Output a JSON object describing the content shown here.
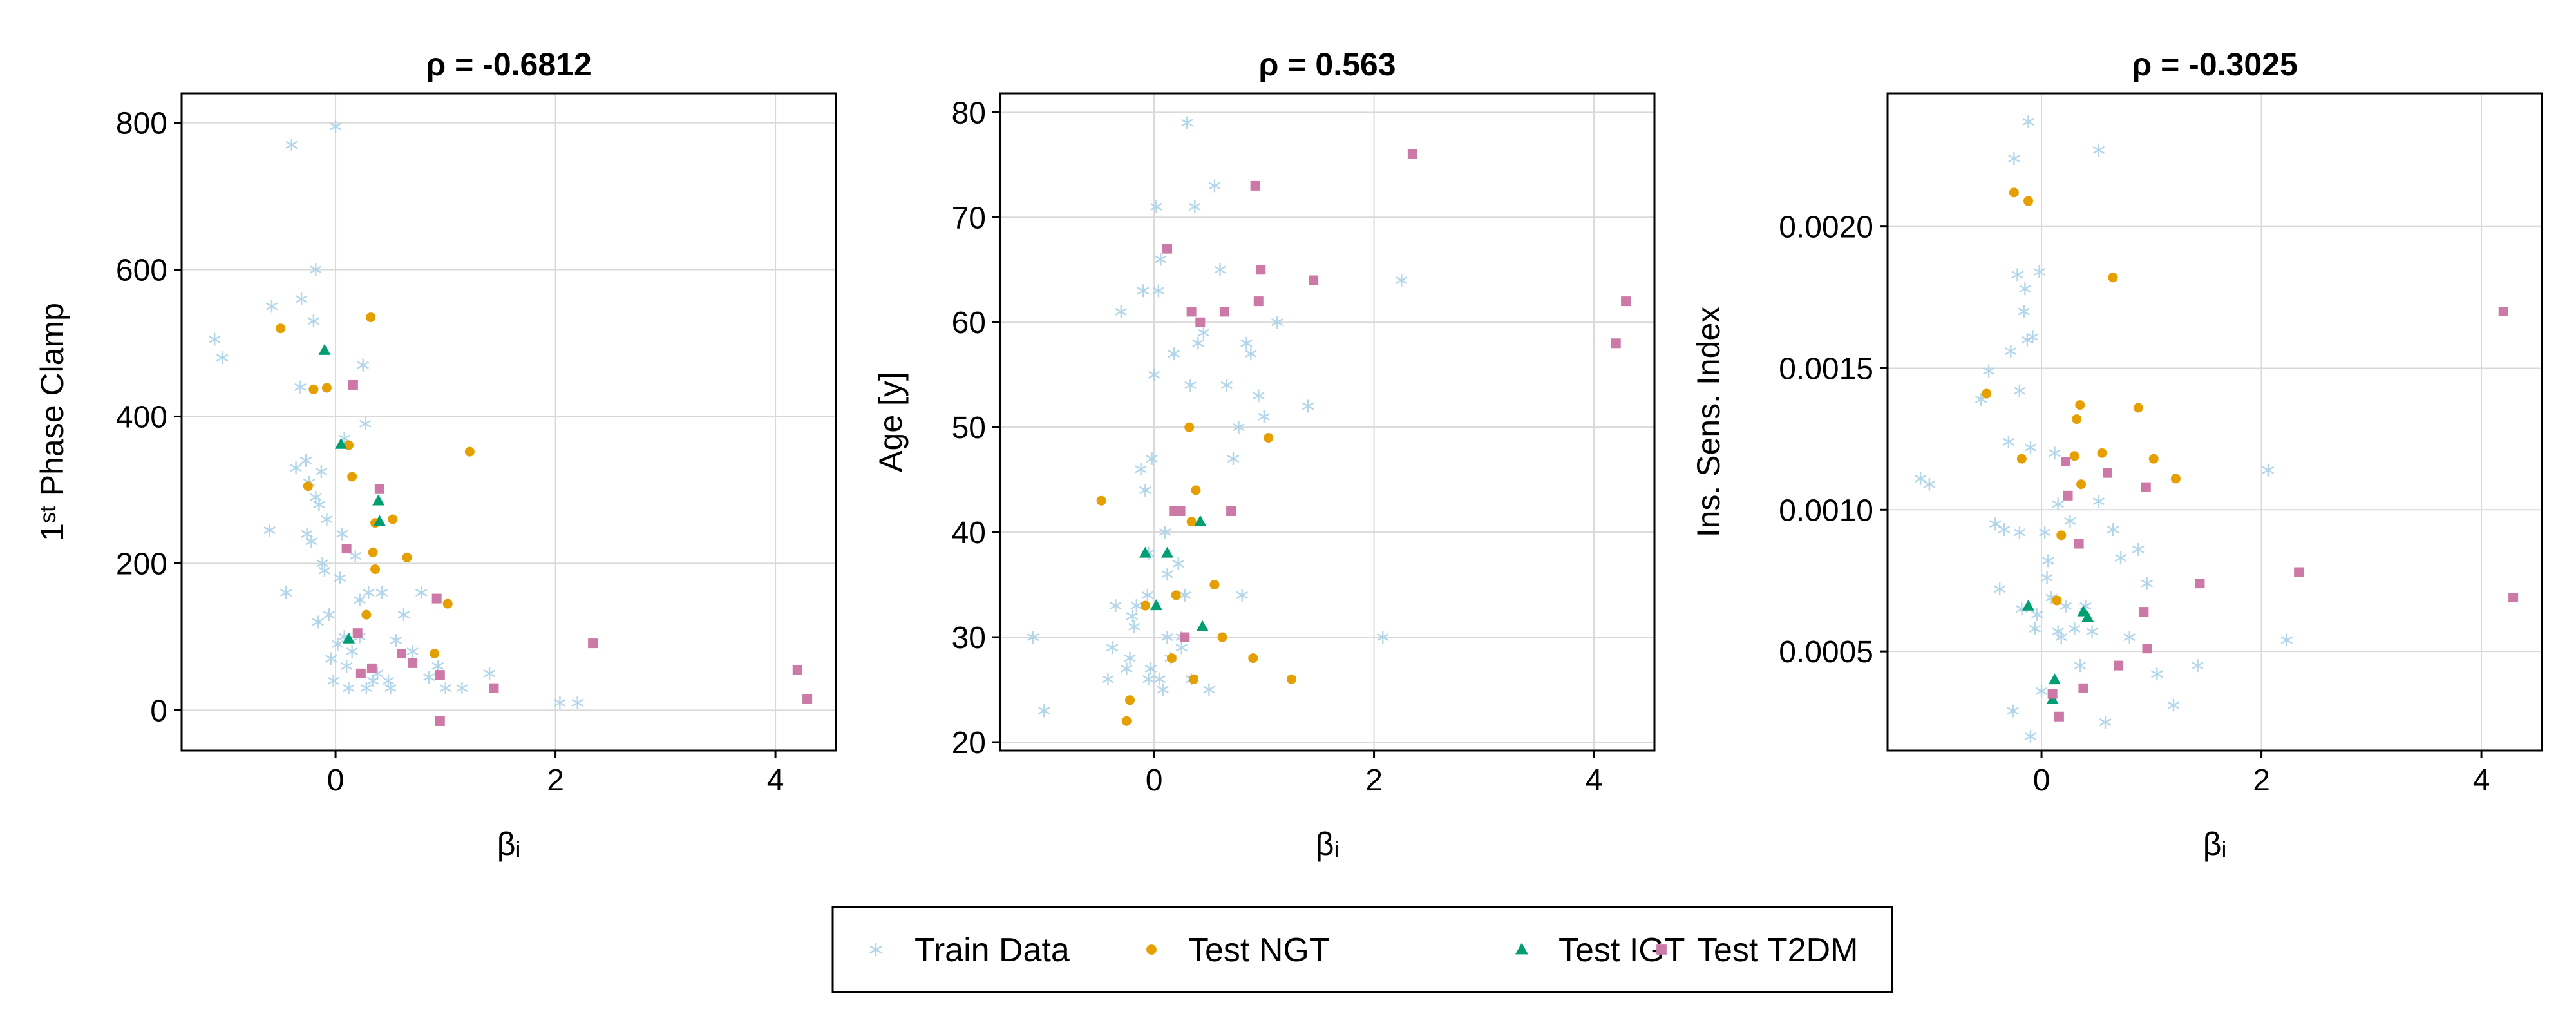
{
  "chart_data": [
    {
      "type": "scatter",
      "title": "ρ = -0.6812",
      "xlabel": "βᵢ",
      "ylabel": "1ˢᵗ Phase Clamp",
      "xlim": [
        -1.4,
        4.55
      ],
      "ylim": [
        -55,
        840
      ],
      "xticks": [
        0,
        2,
        4
      ],
      "xtick_labels": [
        "0",
        "2",
        "4"
      ],
      "yticks": [
        0,
        200,
        400,
        600,
        800
      ],
      "ytick_labels": [
        "0",
        "200",
        "400",
        "600",
        "800"
      ],
      "grid": true,
      "series": [
        {
          "name": "Train Data",
          "x": [
            -1.1,
            -1.03,
            -0.58,
            -0.4,
            -0.36,
            -0.31,
            -0.27,
            -0.22,
            -0.2,
            -0.18,
            -0.16,
            -0.15,
            -0.13,
            -0.12,
            -0.1,
            -0.08,
            -0.06,
            -0.04,
            0.0,
            0.02,
            0.04,
            0.06,
            0.08,
            0.1,
            0.12,
            0.15,
            0.18,
            0.22,
            0.25,
            0.28,
            0.3,
            0.34,
            0.38,
            0.42,
            0.48,
            0.55,
            0.62,
            0.7,
            0.78,
            0.85,
            0.93,
            1.0,
            1.15,
            1.4,
            -0.6,
            -0.45,
            -0.26,
            -0.32,
            -0.02,
            0.27,
            2.04,
            2.2,
            -0.24,
            -0.18,
            0.08,
            0.5,
            0.22
          ],
          "y": [
            505,
            480,
            550,
            770,
            330,
            560,
            340,
            230,
            530,
            600,
            120,
            280,
            325,
            200,
            190,
            260,
            130,
            70,
            795,
            90,
            180,
            240,
            100,
            60,
            30,
            80,
            210,
            150,
            470,
            30,
            160,
            40,
            50,
            160,
            40,
            95,
            130,
            80,
            160,
            45,
            60,
            30,
            30,
            50,
            245,
            160,
            240,
            440,
            40,
            390,
            10,
            10,
            310,
            290,
            370,
            30,
            100
          ]
        },
        {
          "name": "Test NGT",
          "x": [
            -0.5,
            -0.25,
            -0.2,
            -0.08,
            0.12,
            0.15,
            0.32,
            0.34,
            0.36,
            0.36,
            0.52,
            0.65,
            0.9,
            1.02,
            1.22,
            0.28
          ],
          "y": [
            520,
            305,
            437,
            439,
            361,
            318,
            535,
            215,
            192,
            255,
            260,
            208,
            77,
            145,
            352,
            130
          ]
        },
        {
          "name": "Test IGT",
          "x": [
            -0.1,
            0.05,
            0.39,
            0.4,
            0.12
          ],
          "y": [
            490,
            362,
            285,
            257,
            97
          ]
        },
        {
          "name": "Test T2DM",
          "x": [
            0.1,
            0.16,
            0.2,
            0.23,
            0.33,
            0.4,
            0.6,
            0.7,
            0.92,
            0.95,
            0.95,
            1.44,
            2.34,
            4.2,
            4.29
          ],
          "y": [
            220,
            443,
            105,
            50,
            57,
            301,
            77,
            64,
            152,
            48,
            -15,
            30,
            91,
            55,
            15
          ]
        }
      ]
    },
    {
      "type": "scatter",
      "title": "ρ = 0.563",
      "xlabel": "βᵢ",
      "ylabel": "Age [y]",
      "xlim": [
        -1.4,
        4.55
      ],
      "ylim": [
        19.2,
        81.8
      ],
      "xticks": [
        0,
        2,
        4
      ],
      "xtick_labels": [
        "0",
        "2",
        "4"
      ],
      "yticks": [
        20,
        30,
        40,
        50,
        60,
        70,
        80
      ],
      "ytick_labels": [
        "20",
        "30",
        "40",
        "50",
        "60",
        "70",
        "80"
      ],
      "grid": true,
      "series": [
        {
          "name": "Train Data",
          "x": [
            -1.1,
            -1.0,
            -0.42,
            -0.38,
            -0.3,
            -0.25,
            -0.2,
            -0.18,
            -0.16,
            -0.12,
            -0.1,
            -0.08,
            -0.06,
            -0.05,
            -0.03,
            0.0,
            0.02,
            0.04,
            0.06,
            0.08,
            0.1,
            0.12,
            0.15,
            0.18,
            0.22,
            0.25,
            0.28,
            0.3,
            0.33,
            0.37,
            0.4,
            0.45,
            0.5,
            0.55,
            0.6,
            0.66,
            0.72,
            0.77,
            0.84,
            0.88,
            0.95,
            1.0,
            1.12,
            1.4,
            2.08,
            2.25,
            -0.35,
            -0.22,
            -0.02,
            0.05,
            0.25,
            -0.05,
            0.12,
            0.34,
            0.8
          ],
          "y": [
            30,
            23,
            26,
            29,
            61,
            27,
            32,
            31,
            33,
            46,
            63,
            44,
            34,
            26,
            27,
            55,
            71,
            63,
            66,
            25,
            40,
            36,
            28,
            57,
            37,
            30,
            34,
            79,
            54,
            71,
            58,
            59,
            25,
            73,
            65,
            54,
            47,
            50,
            58,
            57,
            53,
            51,
            60,
            52,
            30,
            64,
            33,
            28,
            47,
            26,
            29,
            38,
            30,
            26,
            34
          ]
        },
        {
          "name": "Test NGT",
          "x": [
            -0.48,
            -0.22,
            -0.08,
            0.16,
            0.2,
            0.32,
            0.34,
            0.36,
            0.38,
            0.55,
            0.62,
            0.9,
            1.04,
            1.25,
            -0.25
          ],
          "y": [
            43,
            24,
            33,
            28,
            34,
            50,
            41,
            26,
            44,
            35,
            30,
            28,
            49,
            26,
            22
          ]
        },
        {
          "name": "Test IGT",
          "x": [
            -0.08,
            0.02,
            0.12,
            0.42,
            0.44
          ],
          "y": [
            38,
            33,
            38,
            41,
            31
          ]
        },
        {
          "name": "Test T2DM",
          "x": [
            0.12,
            0.18,
            0.24,
            0.28,
            0.34,
            0.42,
            0.64,
            0.7,
            0.92,
            0.95,
            0.97,
            1.45,
            2.35,
            4.2,
            4.29
          ],
          "y": [
            67,
            42,
            42,
            30,
            61,
            60,
            61,
            42,
            73,
            62,
            65,
            64,
            76,
            58,
            62
          ]
        }
      ]
    },
    {
      "type": "scatter",
      "title": "ρ = -0.3025",
      "xlabel": "βᵢ",
      "ylabel": "Ins. Sens. Index",
      "xlim": [
        -1.4,
        4.55
      ],
      "ylim": [
        0.00015,
        0.00247
      ],
      "xticks": [
        0,
        2,
        4
      ],
      "xtick_labels": [
        "0",
        "2",
        "4"
      ],
      "yticks": [
        0.0005,
        0.001,
        0.0015,
        0.002
      ],
      "ytick_labels": [
        "0.0005",
        "0.0010",
        "0.0015",
        "0.0020"
      ],
      "grid": true,
      "series": [
        {
          "name": "Train Data",
          "x": [
            -1.1,
            -1.02,
            -0.55,
            -0.48,
            -0.42,
            -0.38,
            -0.34,
            -0.3,
            -0.28,
            -0.25,
            -0.22,
            -0.2,
            -0.18,
            -0.16,
            -0.15,
            -0.13,
            -0.12,
            -0.1,
            -0.08,
            -0.06,
            -0.04,
            -0.02,
            0.0,
            0.03,
            0.06,
            0.09,
            0.12,
            0.15,
            0.18,
            0.22,
            0.26,
            0.3,
            0.35,
            0.4,
            0.46,
            0.52,
            0.58,
            0.65,
            0.72,
            0.8,
            0.88,
            0.96,
            1.05,
            1.2,
            1.42,
            2.06,
            2.23,
            -0.26,
            -0.1,
            0.05,
            0.15,
            0.52,
            -0.2
          ],
          "y": [
            0.00111,
            0.00109,
            0.00139,
            0.00149,
            0.00095,
            0.00072,
            0.00093,
            0.00124,
            0.00156,
            0.00224,
            0.00183,
            0.00142,
            0.00065,
            0.0017,
            0.00178,
            0.0016,
            0.00237,
            0.00122,
            0.00161,
            0.00058,
            0.00063,
            0.00184,
            0.00036,
            0.00092,
            0.00082,
            0.00069,
            0.0012,
            0.00102,
            0.00055,
            0.00066,
            0.00096,
            0.00058,
            0.00045,
            0.00066,
            0.00057,
            0.00227,
            0.00025,
            0.00093,
            0.00083,
            0.00055,
            0.00086,
            0.00074,
            0.00042,
            0.00031,
            0.00045,
            0.00114,
            0.00054,
            0.00029,
            0.0002,
            0.00076,
            0.00057,
            0.00103,
            0.00092
          ]
        },
        {
          "name": "Test NGT",
          "x": [
            -0.5,
            -0.25,
            -0.18,
            -0.12,
            0.14,
            0.18,
            0.3,
            0.32,
            0.35,
            0.36,
            0.55,
            0.65,
            0.88,
            1.02,
            1.22
          ],
          "y": [
            0.00141,
            0.00212,
            0.00118,
            0.00209,
            0.00068,
            0.00091,
            0.00119,
            0.00132,
            0.00137,
            0.00109,
            0.0012,
            0.00182,
            0.00136,
            0.00118,
            0.00111
          ]
        },
        {
          "name": "Test IGT",
          "x": [
            -0.12,
            0.1,
            0.12,
            0.38,
            0.42
          ],
          "y": [
            0.00066,
            0.00033,
            0.0004,
            0.00064,
            0.00062
          ]
        },
        {
          "name": "Test T2DM",
          "x": [
            0.1,
            0.16,
            0.22,
            0.24,
            0.34,
            0.38,
            0.6,
            0.7,
            0.93,
            0.95,
            0.96,
            1.44,
            2.34,
            4.2,
            4.29
          ],
          "y": [
            0.00035,
            0.00027,
            0.00117,
            0.00105,
            0.00088,
            0.00037,
            0.00113,
            0.00045,
            0.00064,
            0.00108,
            0.00051,
            0.00074,
            0.00078,
            0.0017,
            0.00069
          ]
        }
      ]
    }
  ],
  "legend": {
    "position": "bottom-center",
    "entries": [
      {
        "label": "Train Data",
        "marker": "star-icon",
        "color": "#a6cfe8"
      },
      {
        "label": "Test NGT",
        "marker": "circle-icon",
        "color": "#e69f00"
      },
      {
        "label": "Test IGT",
        "marker": "triangle-icon",
        "color": "#009e73"
      },
      {
        "label": "Test T2DM",
        "marker": "square-icon",
        "color": "#cc79a7"
      }
    ]
  },
  "colors": {
    "Train Data": "#a6cfe8",
    "Test NGT": "#e69f00",
    "Test IGT": "#009e73",
    "Test T2DM": "#cc79a7",
    "grid": "#d9d9d9",
    "axis": "#000000"
  }
}
